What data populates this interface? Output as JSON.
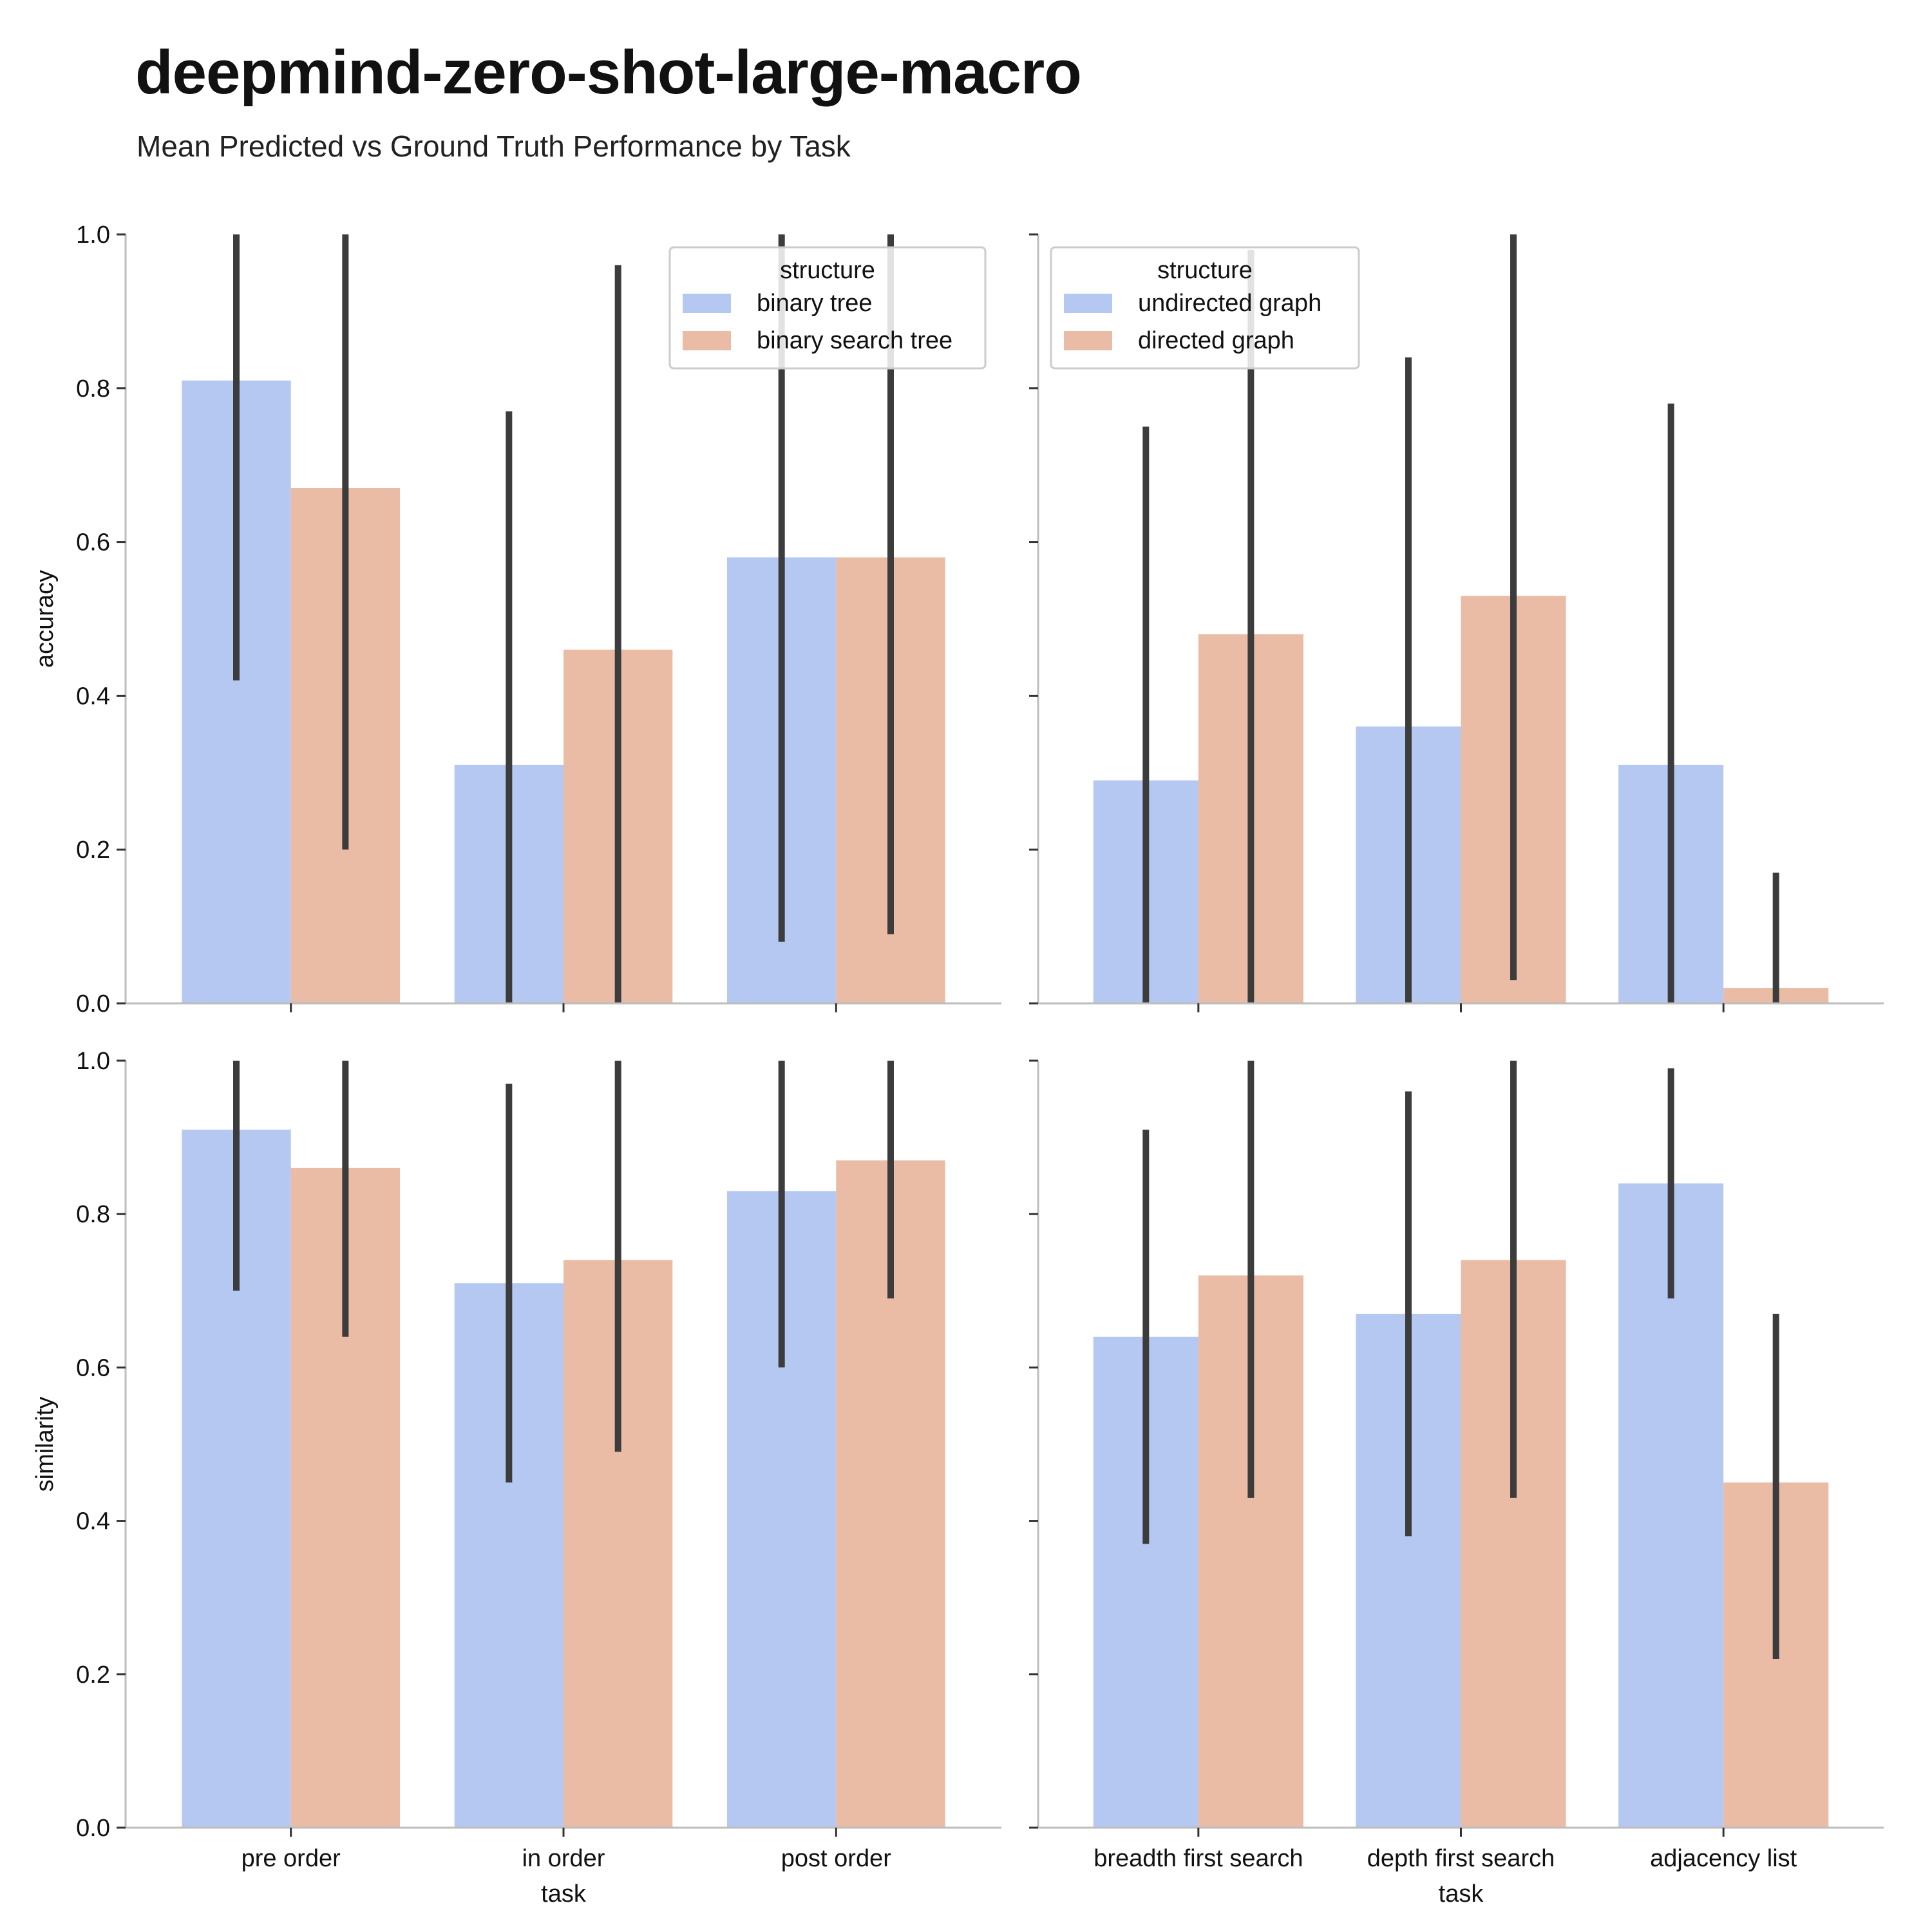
{
  "title": "deepmind-zero-shot-large-macro",
  "subtitle": "Mean Predicted vs Ground Truth Performance by Task",
  "colors": {
    "series_a": "#b4c8f2",
    "series_b": "#eabba5",
    "errorbar": "#3c3c3c",
    "axis": "#bdbdbd"
  },
  "chart_data": [
    {
      "type": "bar",
      "panel": "top-left",
      "categories": [
        "pre order",
        "in order",
        "post order"
      ],
      "series": [
        {
          "name": "binary tree",
          "values": [
            0.81,
            0.31,
            0.58
          ],
          "err_low": [
            0.42,
            0.0,
            0.08
          ],
          "err_high": [
            1.0,
            0.77,
            1.0
          ]
        },
        {
          "name": "binary search tree",
          "values": [
            0.67,
            0.46,
            0.58
          ],
          "err_low": [
            0.2,
            0.0,
            0.09
          ],
          "err_high": [
            1.0,
            0.96,
            1.0
          ]
        }
      ],
      "legend_title": "structure",
      "legend_position": "top-right",
      "ylabel": "accuracy",
      "xlabel": "",
      "ylim": [
        0,
        1.0
      ],
      "yticks": [
        "0.0",
        "0.2",
        "0.4",
        "0.6",
        "0.8",
        "1.0"
      ]
    },
    {
      "type": "bar",
      "panel": "top-right",
      "categories": [
        "breadth first search",
        "depth first search",
        "adjacency list"
      ],
      "series": [
        {
          "name": "undirected graph",
          "values": [
            0.29,
            0.36,
            0.31
          ],
          "err_low": [
            0.0,
            0.0,
            0.0
          ],
          "err_high": [
            0.75,
            0.84,
            0.78
          ]
        },
        {
          "name": "directed graph",
          "values": [
            0.48,
            0.53,
            0.02
          ],
          "err_low": [
            0.0,
            0.03,
            0.0
          ],
          "err_high": [
            0.98,
            1.0,
            0.17
          ]
        }
      ],
      "legend_title": "structure",
      "legend_position": "top-left",
      "ylabel": "",
      "xlabel": "",
      "ylim": [
        0,
        1.0
      ],
      "yticks": []
    },
    {
      "type": "bar",
      "panel": "bottom-left",
      "categories": [
        "pre order",
        "in order",
        "post order"
      ],
      "series": [
        {
          "name": "binary tree",
          "values": [
            0.91,
            0.71,
            0.83
          ],
          "err_low": [
            0.7,
            0.45,
            0.6
          ],
          "err_high": [
            1.0,
            0.97,
            1.0
          ]
        },
        {
          "name": "binary search tree",
          "values": [
            0.86,
            0.74,
            0.87
          ],
          "err_low": [
            0.64,
            0.49,
            0.69
          ],
          "err_high": [
            1.0,
            1.0,
            1.0
          ]
        }
      ],
      "ylabel": "similarity",
      "xlabel": "task",
      "ylim": [
        0,
        1.0
      ],
      "yticks": [
        "0.0",
        "0.2",
        "0.4",
        "0.6",
        "0.8",
        "1.0"
      ]
    },
    {
      "type": "bar",
      "panel": "bottom-right",
      "categories": [
        "breadth first search",
        "depth first search",
        "adjacency list"
      ],
      "series": [
        {
          "name": "undirected graph",
          "values": [
            0.64,
            0.67,
            0.84
          ],
          "err_low": [
            0.37,
            0.38,
            0.69
          ],
          "err_high": [
            0.91,
            0.96,
            0.99
          ]
        },
        {
          "name": "directed graph",
          "values": [
            0.72,
            0.74,
            0.45
          ],
          "err_low": [
            0.43,
            0.43,
            0.22
          ],
          "err_high": [
            1.0,
            1.0,
            0.67
          ]
        }
      ],
      "ylabel": "",
      "xlabel": "task",
      "ylim": [
        0,
        1.0
      ],
      "yticks": []
    }
  ]
}
